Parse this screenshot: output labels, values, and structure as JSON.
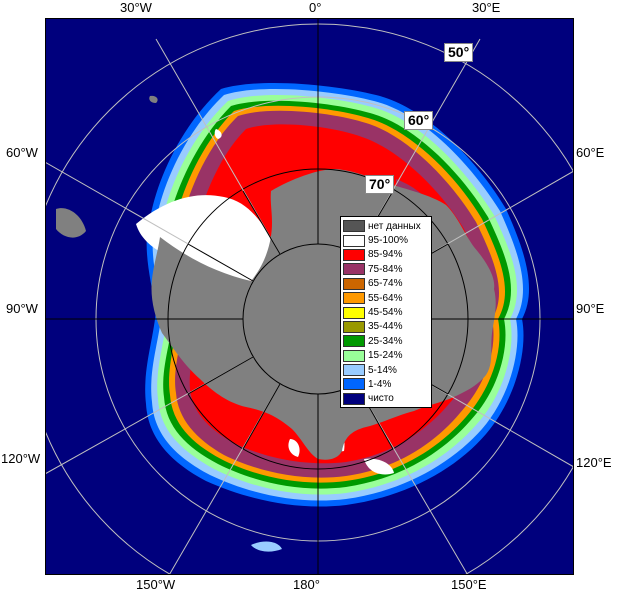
{
  "map": {
    "longitude_labels": {
      "top_30w": "30°W",
      "top_0": "0°",
      "top_30e": "30°E",
      "left_60w": "60°W",
      "left_90w": "90°W",
      "left_120w": "120°W",
      "right_60e": "60°E",
      "right_90e": "90°E",
      "right_120e": "120°E",
      "bottom_150w": "150°W",
      "bottom_180": "180°",
      "bottom_150e": "150°E"
    },
    "latitude_labels": {
      "lat_50": "50°",
      "lat_60": "60°",
      "lat_70": "70°"
    },
    "colors": {
      "open_water": "#00007d",
      "land": "#808080",
      "ice_95_100": "#ffffff",
      "ice_85_94": "#ff0000",
      "ice_75_84": "#993366",
      "ice_65_74": "#cc6600",
      "ice_55_64": "#ff9900",
      "ice_45_54": "#ffff00",
      "ice_35_44": "#999900",
      "ice_25_34": "#009900",
      "ice_15_24": "#99ff99",
      "ice_5_14": "#99ccff",
      "ice_1_4": "#0066ff",
      "no_data": "#555555"
    }
  },
  "legend": {
    "items": [
      {
        "label": "нет данных",
        "color": "#555555"
      },
      {
        "label": "95-100%",
        "color": "#ffffff"
      },
      {
        "label": "85-94%",
        "color": "#ff0000"
      },
      {
        "label": "75-84%",
        "color": "#993366"
      },
      {
        "label": "65-74%",
        "color": "#cc6600"
      },
      {
        "label": "55-64%",
        "color": "#ff9900"
      },
      {
        "label": "45-54%",
        "color": "#ffff00"
      },
      {
        "label": "35-44%",
        "color": "#999900"
      },
      {
        "label": "25-34%",
        "color": "#009900"
      },
      {
        "label": "15-24%",
        "color": "#99ff99"
      },
      {
        "label": "5-14%",
        "color": "#99ccff"
      },
      {
        "label": "1-4%",
        "color": "#0066ff"
      },
      {
        "label": "чисто",
        "color": "#00007d"
      }
    ]
  }
}
